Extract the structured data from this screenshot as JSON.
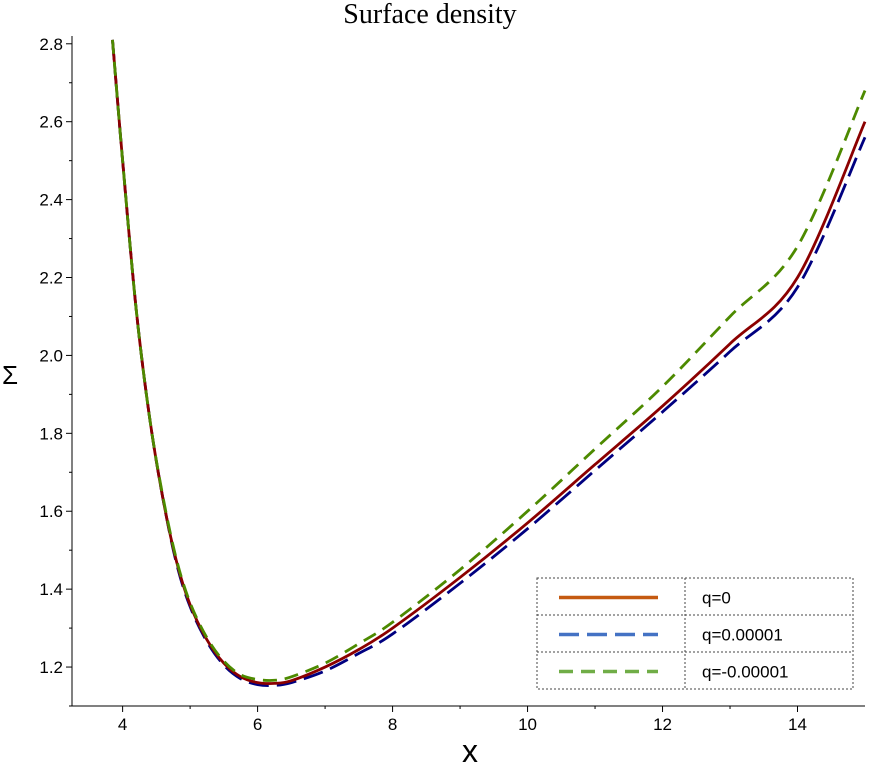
{
  "chart_data": {
    "type": "line",
    "title": "Surface density",
    "xlabel": "x",
    "ylabel": "Σ",
    "xlim": [
      3.25,
      15
    ],
    "ylim": [
      1.1,
      2.82
    ],
    "x_ticks": [
      4,
      6,
      8,
      10,
      12,
      14
    ],
    "x_tick_labels": [
      "4",
      "6",
      "8",
      "10",
      "12",
      "14"
    ],
    "y_ticks": [
      1.2,
      1.4,
      1.6,
      1.8,
      2.0,
      2.2,
      2.4,
      2.6,
      2.8
    ],
    "y_tick_labels": [
      "1.2",
      "1.4",
      "1.6",
      "1.8",
      "2.0",
      "2.2",
      "2.4",
      "2.6",
      "2.8"
    ],
    "grid": false,
    "legend_position": "bottom-right",
    "x": [
      3.85,
      4.0,
      4.2,
      4.4,
      4.6,
      4.8,
      5.0,
      5.25,
      5.5,
      5.75,
      6.0,
      6.25,
      6.5,
      7.0,
      7.5,
      8.0,
      9.0,
      10.0,
      11.0,
      12.0,
      13.0,
      14.0,
      15.0
    ],
    "series": [
      {
        "name": "q=0",
        "legend_color": "#c55a11",
        "line_color": "#8b0000",
        "dash": "solid",
        "values": [
          2.81,
          2.5,
          2.12,
          1.84,
          1.63,
          1.47,
          1.36,
          1.27,
          1.21,
          1.175,
          1.16,
          1.158,
          1.165,
          1.2,
          1.245,
          1.3,
          1.43,
          1.57,
          1.72,
          1.87,
          2.03,
          2.2,
          2.6
        ]
      },
      {
        "name": "q=0.00001",
        "legend_color": "#4472c4",
        "line_color": "#000080",
        "dash": "long-dash",
        "values": [
          2.81,
          2.5,
          2.12,
          1.84,
          1.63,
          1.465,
          1.355,
          1.265,
          1.205,
          1.17,
          1.155,
          1.153,
          1.16,
          1.19,
          1.235,
          1.285,
          1.415,
          1.555,
          1.705,
          1.855,
          2.01,
          2.175,
          2.56
        ]
      },
      {
        "name": "q=-0.00001",
        "legend_color": "#70ad47",
        "line_color": "#4d8a00",
        "dash": "dash",
        "values": [
          2.81,
          2.5,
          2.12,
          1.84,
          1.635,
          1.475,
          1.365,
          1.275,
          1.215,
          1.18,
          1.168,
          1.166,
          1.175,
          1.21,
          1.26,
          1.315,
          1.45,
          1.6,
          1.76,
          1.92,
          2.1,
          2.28,
          2.68
        ]
      }
    ]
  }
}
